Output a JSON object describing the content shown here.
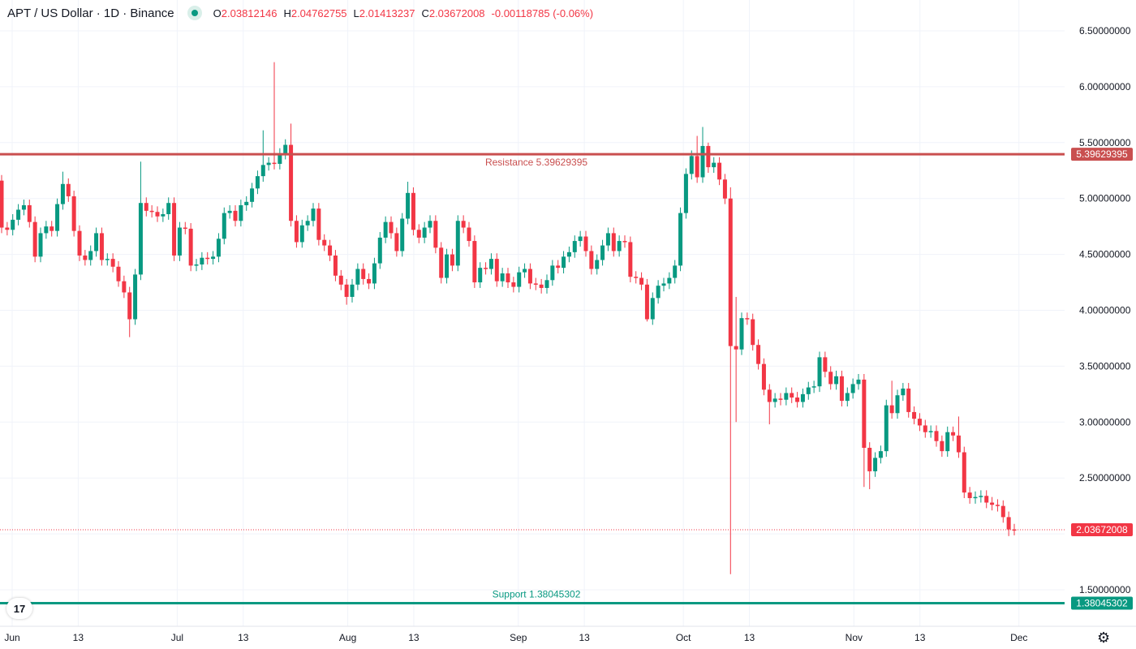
{
  "header": {
    "title": "APT / US Dollar · 1D · Binance",
    "open_key": "O",
    "open": "2.03812146",
    "high_key": "H",
    "high": "2.04762755",
    "low_key": "L",
    "low": "2.01413237",
    "close_key": "C",
    "close": "2.03672008",
    "change": "-0.00118785 (-0.06%)"
  },
  "colors": {
    "up": "#089981",
    "down": "#f23645",
    "resistance": "#c94f4f",
    "support": "#089981",
    "grid": "#f0f3fa"
  },
  "icons": {
    "settings": "gear-icon",
    "logo": "tradingview-logo",
    "status": "market-status-dot"
  },
  "chart_data": {
    "type": "candlestick",
    "title": "APT / US Dollar · 1D · Binance",
    "ylim": [
      1.32,
      6.72
    ],
    "y_ticks": [
      "6.50000000",
      "6.00000000",
      "5.50000000",
      "5.00000000",
      "4.50000000",
      "4.00000000",
      "3.50000000",
      "3.00000000",
      "2.50000000",
      "1.50000000"
    ],
    "y_tick_values": [
      6.5,
      6.0,
      5.5,
      5.0,
      4.5,
      4.0,
      3.5,
      3.0,
      2.5,
      1.5
    ],
    "x_ticks": [
      {
        "label": "Jun",
        "day": 0
      },
      {
        "label": "13",
        "day": 12
      },
      {
        "label": "Jul",
        "day": 30
      },
      {
        "label": "13",
        "day": 42
      },
      {
        "label": "Aug",
        "day": 61
      },
      {
        "label": "13",
        "day": 73
      },
      {
        "label": "Sep",
        "day": 92
      },
      {
        "label": "13",
        "day": 104
      },
      {
        "label": "Oct",
        "day": 122
      },
      {
        "label": "13",
        "day": 134
      },
      {
        "label": "Nov",
        "day": 153
      },
      {
        "label": "13",
        "day": 165
      },
      {
        "label": "Dec",
        "day": 183
      }
    ],
    "first_open": 5.16,
    "close": [
      4.74,
      4.72,
      4.81,
      4.9,
      4.94,
      4.79,
      4.48,
      4.69,
      4.75,
      4.71,
      4.95,
      5.13,
      5.02,
      4.71,
      4.49,
      4.45,
      4.53,
      4.69,
      4.45,
      4.46,
      4.39,
      4.26,
      4.16,
      3.92,
      4.32,
      4.96,
      4.89,
      4.88,
      4.84,
      4.86,
      4.96,
      4.49,
      4.74,
      4.73,
      4.4,
      4.41,
      4.47,
      4.46,
      4.48,
      4.64,
      4.87,
      4.89,
      4.8,
      4.94,
      4.97,
      5.09,
      5.2,
      5.3,
      5.32,
      5.31,
      5.4,
      5.48,
      4.8,
      4.61,
      4.76,
      4.8,
      4.91,
      4.63,
      4.58,
      4.49,
      4.31,
      4.23,
      4.12,
      4.23,
      4.37,
      4.28,
      4.24,
      4.42,
      4.65,
      4.79,
      4.69,
      4.53,
      4.82,
      5.05,
      4.72,
      4.65,
      4.74,
      4.8,
      4.56,
      4.29,
      4.5,
      4.4,
      4.8,
      4.74,
      4.62,
      4.25,
      4.38,
      4.37,
      4.46,
      4.26,
      4.33,
      4.25,
      4.21,
      4.34,
      4.37,
      4.24,
      4.23,
      4.2,
      4.27,
      4.4,
      4.38,
      4.48,
      4.52,
      4.62,
      4.66,
      4.53,
      4.37,
      4.45,
      4.58,
      4.69,
      4.53,
      4.62,
      4.61,
      4.3,
      4.29,
      4.23,
      3.92,
      4.11,
      4.22,
      4.24,
      4.29,
      4.4,
      4.87,
      5.22,
      5.38,
      5.19,
      5.47,
      5.28,
      5.32,
      5.17,
      5.0,
      3.68,
      3.65,
      3.93,
      3.92,
      3.69,
      3.52,
      3.29,
      3.18,
      3.21,
      3.2,
      3.26,
      3.22,
      3.18,
      3.25,
      3.31,
      3.32,
      3.58,
      3.45,
      3.34,
      3.41,
      3.19,
      3.26,
      3.34,
      3.38,
      2.77,
      2.56,
      2.68,
      2.74,
      3.15,
      3.08,
      3.24,
      3.3,
      3.09,
      3.03,
      2.97,
      2.91,
      2.92,
      2.83,
      2.74,
      2.91,
      2.88,
      2.73,
      2.37,
      2.32,
      2.33,
      2.34,
      2.28,
      2.26,
      2.25,
      2.15,
      2.04,
      2.0367
    ],
    "default_wick": 0.05,
    "high_overrides": {
      "11": 5.24,
      "25": 5.33,
      "49": 6.22,
      "52": 5.67,
      "47": 5.61,
      "73": 5.15,
      "125": 5.56,
      "126": 5.64,
      "127": 5.5,
      "131": 5.1,
      "132": 4.12,
      "147": 3.63,
      "172": 3.05,
      "160": 3.37
    },
    "low_overrides": {
      "23": 3.76,
      "62": 4.05,
      "116": 3.9,
      "131": 1.64,
      "138": 2.98,
      "156": 2.4,
      "155": 2.42,
      "132": 3.0,
      "181": 1.98
    },
    "resistance": {
      "label": "Resistance 5.39629395",
      "value": 5.39629395,
      "axis_label": "5.39629395"
    },
    "support": {
      "label": "Support 1.38045302",
      "value": 1.38045302,
      "axis_label": "1.38045302"
    },
    "last_price": {
      "value": 2.03672008,
      "axis_label": "2.03672008"
    }
  }
}
